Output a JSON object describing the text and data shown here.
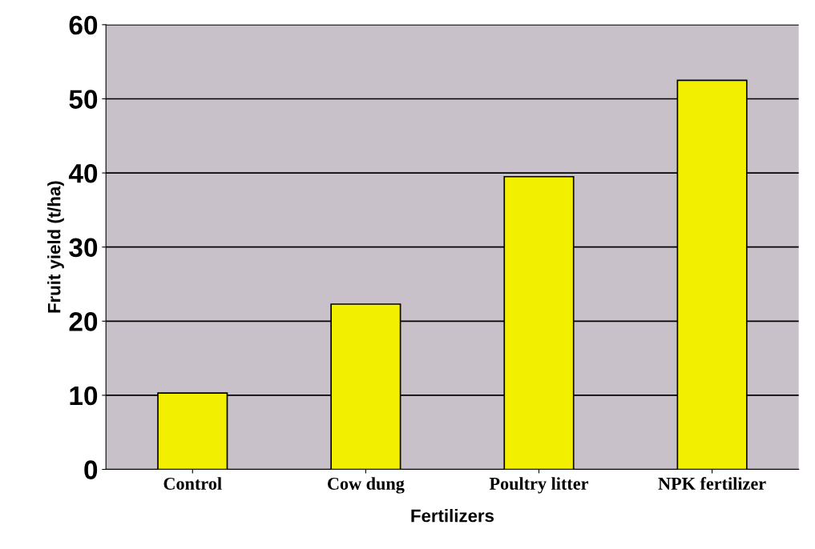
{
  "chart_data": {
    "type": "bar",
    "xlabel": "Fertilizers",
    "ylabel": "Fruit yield (t/ha)",
    "categories": [
      "Control",
      "Cow dung",
      "Poultry litter",
      "NPK fertilizer"
    ],
    "values": [
      10.3,
      22.3,
      39.5,
      52.5
    ],
    "color": "#f2f000",
    "ylim": [
      0,
      60
    ],
    "yticks": [
      0,
      10,
      20,
      30,
      40,
      50,
      60
    ],
    "grid": "y"
  }
}
